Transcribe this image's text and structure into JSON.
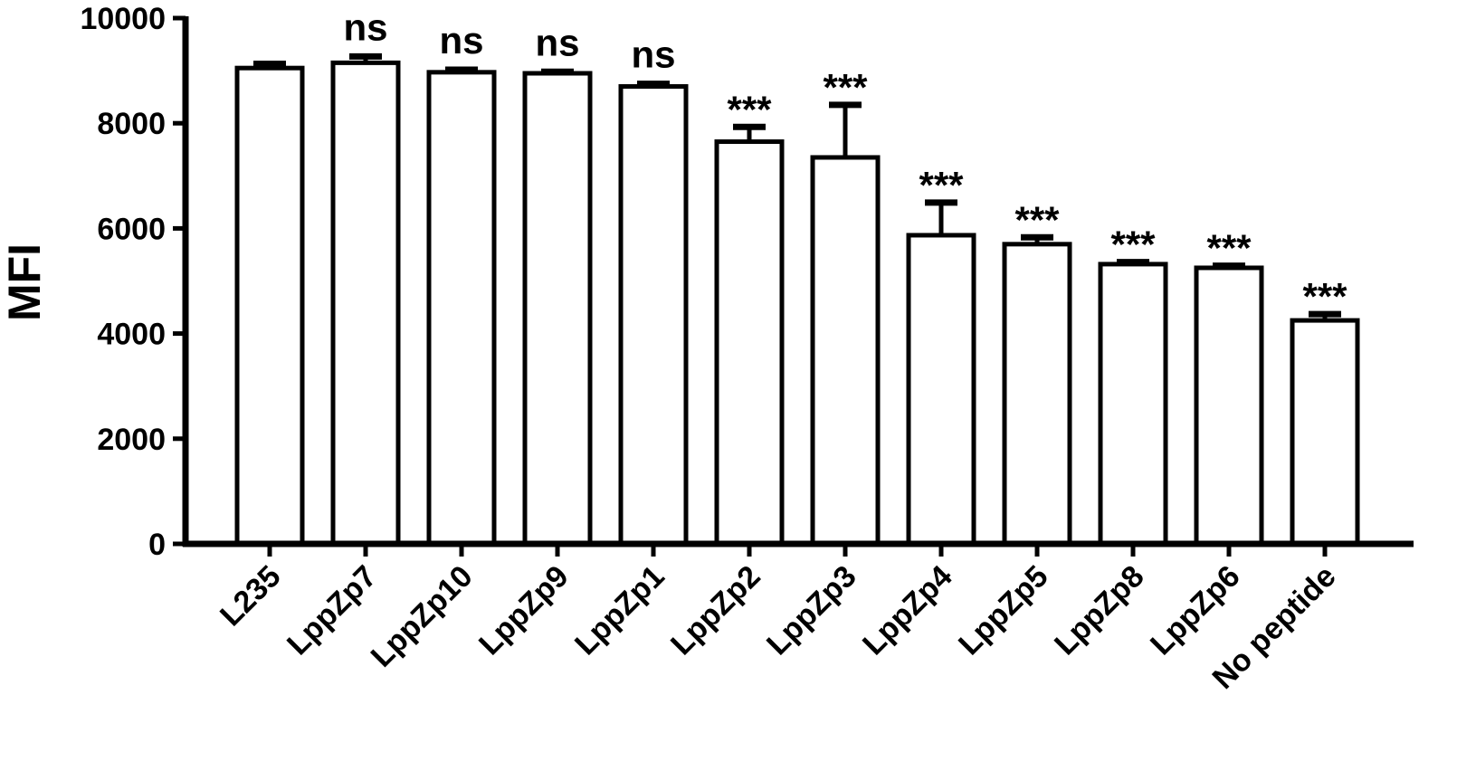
{
  "chart_data": {
    "type": "bar",
    "title": "",
    "xlabel": "",
    "ylabel": "MFI",
    "ylim": [
      0,
      10000
    ],
    "yticks": [
      0,
      2000,
      4000,
      6000,
      8000,
      10000
    ],
    "grid": false,
    "legend": "none",
    "categories": [
      "L235",
      "LppZp7",
      "LppZp10",
      "LppZp9",
      "LppZp1",
      "LppZp2",
      "LppZp3",
      "LppZp4",
      "LppZp5",
      "LppZp8",
      "LppZp6",
      "No peptide"
    ],
    "values": [
      9050,
      9150,
      8970,
      8950,
      8700,
      7650,
      7350,
      5870,
      5700,
      5320,
      5250,
      4250
    ],
    "errors": [
      80,
      120,
      50,
      30,
      50,
      280,
      1000,
      620,
      130,
      40,
      40,
      120
    ],
    "annotations": [
      "",
      "ns",
      "ns",
      "ns",
      "ns",
      "***",
      "***",
      "***",
      "***",
      "***",
      "***",
      "***"
    ],
    "colors": {
      "bar_fill": "#ffffff",
      "bar_stroke": "#000000",
      "axis": "#000000"
    }
  }
}
